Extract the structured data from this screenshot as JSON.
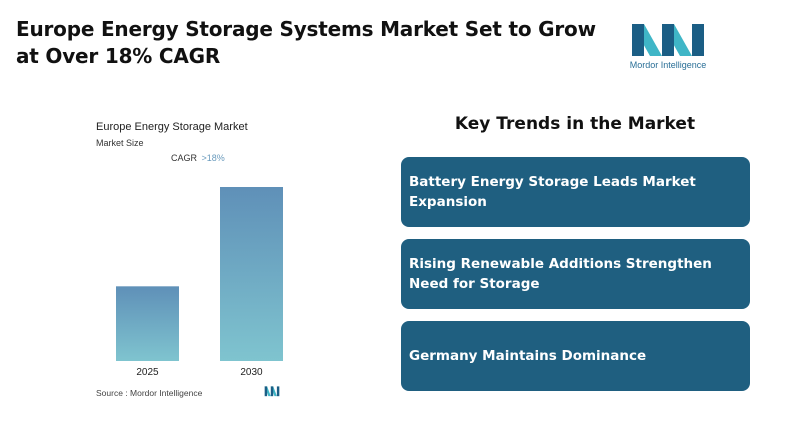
{
  "header": {
    "title": "Europe Energy Storage Systems Market Set to Grow at Over 18% CAGR"
  },
  "brand": {
    "name": "Mordor Intelligence",
    "colors": {
      "dark": "#1b5e85",
      "light": "#3fb6c7"
    }
  },
  "chart_data": {
    "type": "bar",
    "title": "Europe Energy Storage Market",
    "subtitle": "Market Size",
    "cagr_label": "CAGR",
    "cagr_value": ">18%",
    "categories": [
      "2025",
      "2030"
    ],
    "values": [
      1.0,
      2.33
    ],
    "ylim": [
      0,
      2.33
    ],
    "xlabel": "",
    "ylabel": "",
    "grid": false,
    "colors": {
      "top": "#5f90b8",
      "bottom": "#7fc4cf"
    },
    "source": "Source :  Mordor Intelligence"
  },
  "trends": {
    "heading": "Key Trends in the Market",
    "items": [
      {
        "label": "Battery Energy Storage Leads Market Expansion"
      },
      {
        "label": "Rising Renewable Additions Strengthen Need for Storage"
      },
      {
        "label": "Germany Maintains Dominance"
      }
    ],
    "card_color": "#1f5f80"
  }
}
